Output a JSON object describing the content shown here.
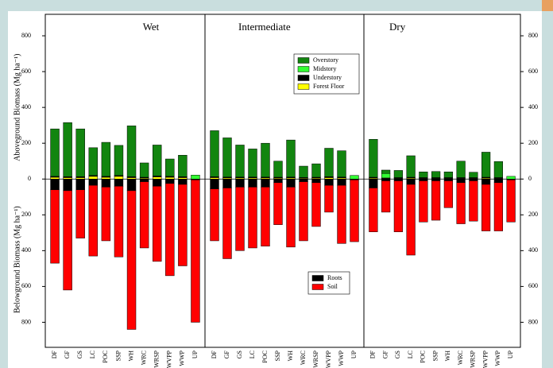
{
  "chart_data": {
    "type": "bar",
    "panels": [
      "Wet",
      "Intermediate",
      "Dry"
    ],
    "ylabel_top": "Aboveground Biomass (Mg ha⁻¹)",
    "ylabel_bottom": "Belowground Biomass (Mg ha⁻¹)",
    "categories": [
      "DF",
      "GF",
      "GS",
      "LC",
      "POC",
      "SSP",
      "WH",
      "WRC",
      "WRSP",
      "WVPP",
      "WWP",
      "UP"
    ],
    "ylim": [
      -940,
      920
    ],
    "yticks": [
      800,
      600,
      400,
      200,
      0,
      {
        "value": -200,
        "label": "200"
      },
      {
        "value": -400,
        "label": "400"
      },
      {
        "value": -600,
        "label": "600"
      },
      {
        "value": -800,
        "label": "800"
      }
    ],
    "series": [
      {
        "name": "Forest Floor",
        "color": "#ffff00",
        "values": [
          [
            10,
            8,
            8,
            15,
            10,
            15,
            8,
            5,
            12,
            10,
            8,
            0
          ],
          [
            8,
            6,
            6,
            6,
            6,
            5,
            6,
            4,
            5,
            8,
            6,
            0
          ],
          [
            5,
            3,
            3,
            5,
            3,
            3,
            3,
            3,
            3,
            5,
            3,
            0
          ]
        ]
      },
      {
        "name": "Understory",
        "color": "#000000",
        "values": [
          [
            3,
            3,
            3,
            3,
            3,
            3,
            3,
            3,
            3,
            3,
            3,
            0
          ],
          [
            3,
            3,
            3,
            3,
            3,
            3,
            3,
            3,
            3,
            3,
            3,
            0
          ],
          [
            3,
            3,
            3,
            3,
            3,
            3,
            3,
            3,
            3,
            3,
            3,
            0
          ]
        ]
      },
      {
        "name": "Midstory",
        "color": "#33ff33",
        "values": [
          [
            2,
            2,
            2,
            2,
            2,
            2,
            2,
            2,
            2,
            2,
            2,
            22
          ],
          [
            2,
            2,
            2,
            2,
            2,
            2,
            2,
            2,
            2,
            2,
            2,
            20
          ],
          [
            2,
            25,
            2,
            2,
            2,
            2,
            2,
            2,
            2,
            2,
            2,
            15
          ]
        ]
      },
      {
        "name": "Overstory",
        "color": "#12850f",
        "values": [
          [
            265,
            302,
            267,
            155,
            190,
            168,
            284,
            80,
            173,
            97,
            120,
            0
          ],
          [
            257,
            219,
            179,
            157,
            189,
            90,
            207,
            63,
            75,
            159,
            147,
            0
          ],
          [
            212,
            19,
            40,
            120,
            32,
            34,
            32,
            92,
            30,
            140,
            90,
            0
          ]
        ]
      },
      {
        "name": "Roots",
        "color": "#000000",
        "values": [
          [
            -60,
            -65,
            -60,
            -35,
            -45,
            -40,
            -65,
            -15,
            -40,
            -25,
            -30,
            -5
          ],
          [
            -55,
            -50,
            -45,
            -45,
            -45,
            -20,
            -45,
            -15,
            -20,
            -35,
            -35,
            -5
          ],
          [
            -50,
            -10,
            -10,
            -30,
            -10,
            -10,
            -10,
            -20,
            -10,
            -30,
            -20,
            -5
          ]
        ]
      },
      {
        "name": "Soil",
        "color": "#ff0000",
        "values": [
          [
            -410,
            -555,
            -270,
            -395,
            -300,
            -395,
            -775,
            -370,
            -420,
            -515,
            -455,
            -795
          ],
          [
            -290,
            -395,
            -355,
            -340,
            -330,
            -235,
            -335,
            -330,
            -245,
            -150,
            -325,
            -345
          ],
          [
            -245,
            -175,
            -285,
            -395,
            -230,
            -220,
            -150,
            -230,
            -225,
            -260,
            -270,
            -235
          ]
        ]
      }
    ]
  }
}
